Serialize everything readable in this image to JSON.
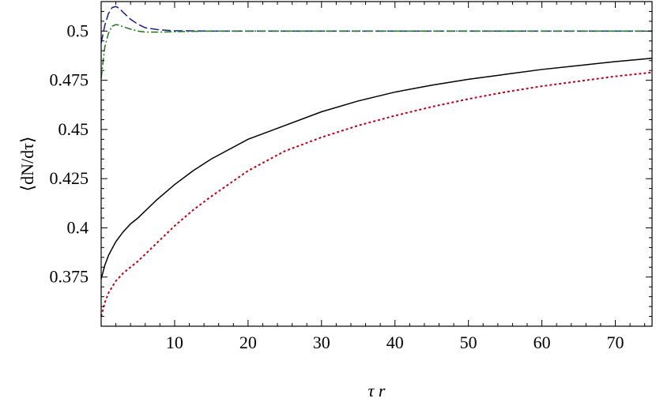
{
  "chart_data": {
    "type": "line",
    "xlabel": "τ r",
    "ylabel": "⟨dN/dτ⟩",
    "xlim": [
      0,
      75
    ],
    "ylim": [
      0.35,
      0.515
    ],
    "grid": false,
    "legend": "none",
    "x_ticks": [
      {
        "value": 10,
        "label": "10"
      },
      {
        "value": 20,
        "label": "20"
      },
      {
        "value": 30,
        "label": "30"
      },
      {
        "value": 40,
        "label": "40"
      },
      {
        "value": 50,
        "label": "50"
      },
      {
        "value": 60,
        "label": "60"
      },
      {
        "value": 70,
        "label": "70"
      }
    ],
    "y_ticks": [
      {
        "value": 0.375,
        "label": "0.375"
      },
      {
        "value": 0.4,
        "label": "0.4"
      },
      {
        "value": 0.425,
        "label": "0.425"
      },
      {
        "value": 0.45,
        "label": "0.45"
      },
      {
        "value": 0.475,
        "label": "0.475"
      },
      {
        "value": 0.5,
        "label": "0.5"
      }
    ],
    "series": [
      {
        "color": "#000000",
        "style": "solid",
        "x": [
          0,
          0.5,
          1,
          2,
          3,
          4,
          5,
          7.5,
          10,
          12.5,
          15,
          20,
          25,
          30,
          35,
          40,
          45,
          50,
          55,
          60,
          65,
          70,
          75
        ],
        "y": [
          0.374,
          0.381,
          0.386,
          0.393,
          0.398,
          0.402,
          0.405,
          0.414,
          0.422,
          0.429,
          0.435,
          0.445,
          0.452,
          0.459,
          0.4645,
          0.469,
          0.4725,
          0.4755,
          0.478,
          0.4805,
          0.4825,
          0.4845,
          0.4862
        ]
      },
      {
        "color": "#c0001a",
        "style": "dotted",
        "x": [
          0,
          0.5,
          1,
          2,
          3,
          4,
          5,
          7.5,
          10,
          12.5,
          15,
          20,
          25,
          30,
          35,
          40,
          45,
          50,
          55,
          60,
          65,
          70,
          75
        ],
        "y": [
          0.355,
          0.362,
          0.367,
          0.373,
          0.377,
          0.38,
          0.383,
          0.392,
          0.401,
          0.409,
          0.416,
          0.429,
          0.439,
          0.446,
          0.452,
          0.457,
          0.4615,
          0.4655,
          0.469,
          0.472,
          0.4745,
          0.477,
          0.479
        ]
      },
      {
        "color": "#1a1a8c",
        "style": "dashed",
        "x": [
          0,
          0.5,
          1,
          1.5,
          2,
          2.5,
          3,
          4,
          5,
          6,
          8,
          10,
          15,
          20,
          30,
          40,
          50,
          60,
          70,
          75
        ],
        "y": [
          0.494,
          0.503,
          0.509,
          0.512,
          0.5125,
          0.5115,
          0.5095,
          0.506,
          0.5035,
          0.5017,
          0.5006,
          0.5002,
          0.5,
          0.5,
          0.5,
          0.5,
          0.5,
          0.5,
          0.5,
          0.5
        ]
      },
      {
        "color": "#1b7a1b",
        "style": "dashdot",
        "x": [
          0,
          0.5,
          1,
          1.5,
          2,
          2.5,
          3,
          4,
          5,
          6,
          8,
          10,
          15,
          20,
          30,
          40,
          50,
          60,
          70,
          75
        ],
        "y": [
          0.476,
          0.492,
          0.499,
          0.5025,
          0.5033,
          0.503,
          0.5022,
          0.501,
          0.5,
          0.4995,
          0.4995,
          0.4997,
          0.5,
          0.5,
          0.5,
          0.5,
          0.5,
          0.5,
          0.5,
          0.5
        ]
      }
    ]
  }
}
